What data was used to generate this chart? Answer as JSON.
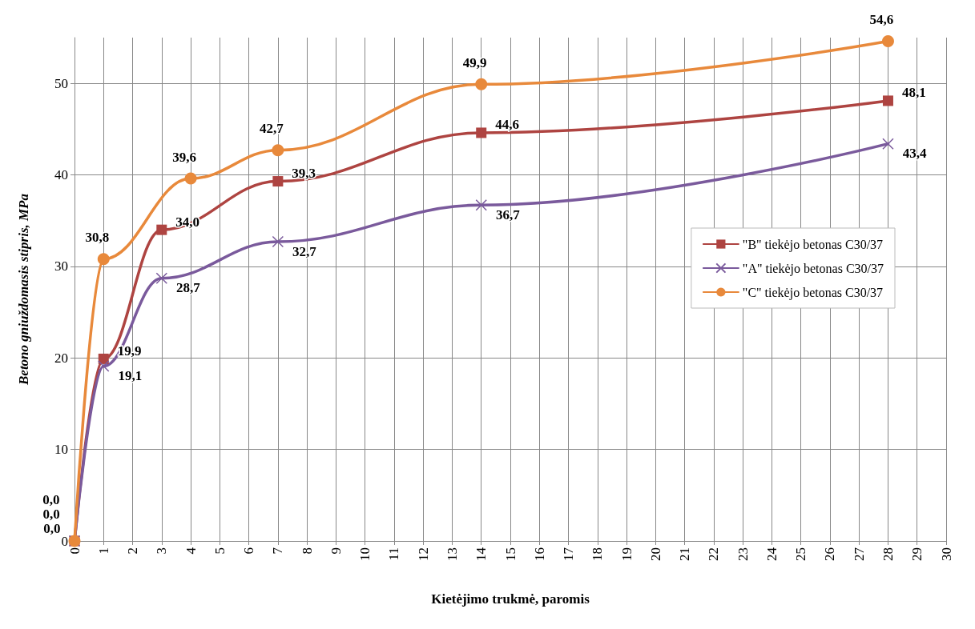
{
  "chart_data": {
    "type": "line",
    "xlabel": "Kietėjimo trukmė, paromis",
    "ylabel": "Betono gniuždomasis stipris, MPa",
    "xlim": [
      0,
      30
    ],
    "xticks": [
      0,
      1,
      2,
      3,
      4,
      5,
      6,
      7,
      8,
      9,
      10,
      11,
      12,
      13,
      14,
      15,
      16,
      17,
      18,
      19,
      20,
      21,
      22,
      23,
      24,
      25,
      26,
      27,
      28,
      29,
      30
    ],
    "ylim": [
      0,
      55
    ],
    "yticks": [
      0,
      10,
      20,
      30,
      40,
      50
    ],
    "grid": true,
    "legend": "right",
    "line_style": "solid",
    "series": [
      {
        "name": "\"B\" tiekėjo betonas C30/37",
        "color": "#ae4441",
        "marker": "square",
        "x": [
          0,
          1,
          3,
          7,
          14,
          28
        ],
        "values": [
          0,
          19.9,
          34.0,
          39.3,
          44.6,
          48.1
        ],
        "value_labels": [
          "0,0",
          "19,9",
          "34,0",
          "39,3",
          "44,6",
          "48,1"
        ]
      },
      {
        "name": "\"A\" tiekėjo betonas C30/37",
        "color": "#7a5a9c",
        "marker": "cross",
        "x": [
          0,
          1,
          3,
          7,
          14,
          28
        ],
        "values": [
          0,
          19.1,
          28.7,
          32.7,
          36.7,
          43.4
        ],
        "value_labels": [
          "0,0",
          "19,1",
          "28,7",
          "32,7",
          "36,7",
          "43,4"
        ]
      },
      {
        "name": "\"C\" tiekėjo betonas C30/37",
        "color": "#e8893b",
        "marker": "circle",
        "x": [
          0,
          1,
          4,
          7,
          14,
          28
        ],
        "values": [
          0,
          30.8,
          39.6,
          42.7,
          49.9,
          54.6
        ],
        "value_labels": [
          "0,0",
          "30,8",
          "39,6",
          "42,7",
          "49,9",
          "54,6"
        ]
      }
    ]
  }
}
